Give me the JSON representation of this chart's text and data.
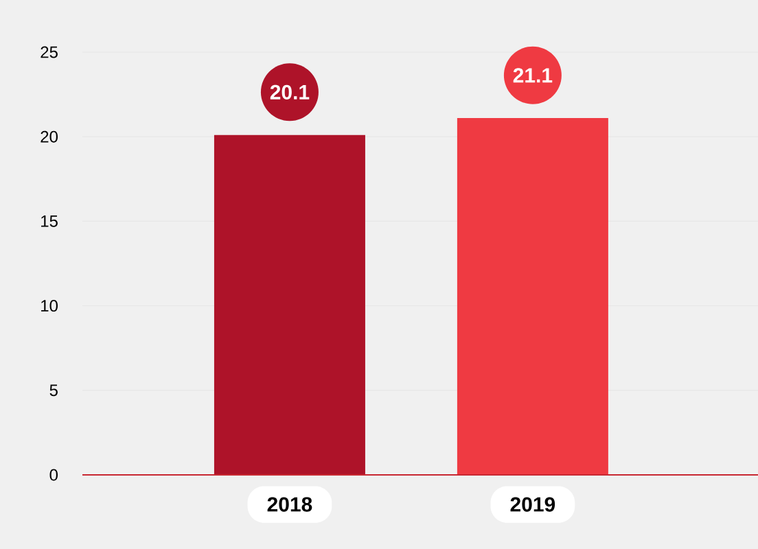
{
  "chart_data": {
    "type": "bar",
    "categories": [
      "2018",
      "2019"
    ],
    "values": [
      20.1,
      21.1
    ],
    "colors": [
      "#ae1329",
      "#ef3a42"
    ],
    "ylim": [
      0,
      25
    ],
    "yticks": [
      0,
      5,
      10,
      15,
      20,
      25
    ],
    "grid": "y",
    "data_labels": true
  }
}
